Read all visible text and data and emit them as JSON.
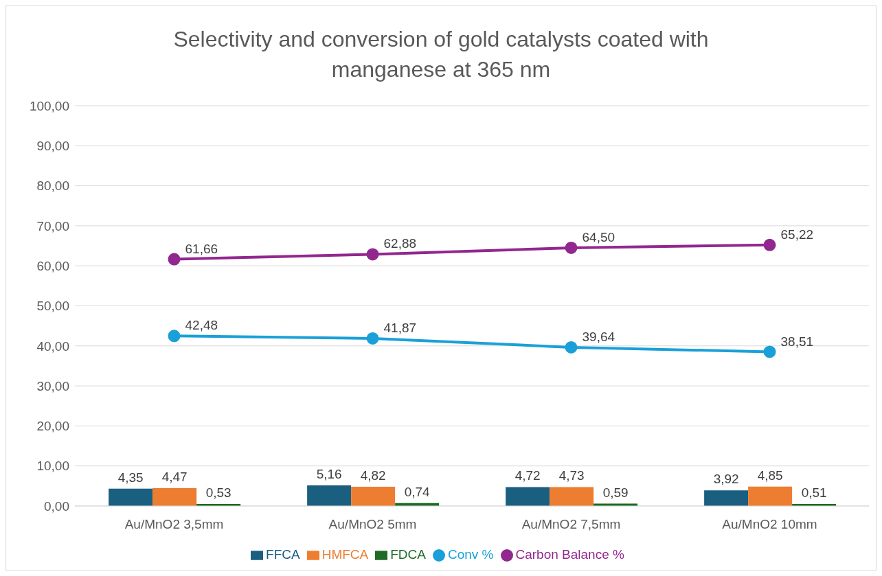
{
  "chart_data": {
    "type": "bar",
    "title": "Selectivity and conversion  of gold catalysts coated with manganese at 365 nm",
    "categories": [
      "Au/MnO2 3,5mm",
      "Au/MnO2 5mm",
      "Au/MnO2 7,5mm",
      "Au/MnO2 10mm"
    ],
    "series": [
      {
        "name": "FFCA",
        "color": "#1a5e80",
        "values": [
          4.35,
          5.16,
          4.72,
          3.92
        ],
        "value_labels": [
          "4,35",
          "5,16",
          "4,72",
          "3,92"
        ]
      },
      {
        "name": "HMFCA",
        "color": "#ed7d31",
        "values": [
          4.47,
          4.82,
          4.73,
          4.85
        ],
        "value_labels": [
          "4,47",
          "4,82",
          "4,73",
          "4,85"
        ]
      },
      {
        "name": "FDCA",
        "color": "#1e6b24",
        "values": [
          0.53,
          0.74,
          0.59,
          0.51
        ],
        "value_labels": [
          "0,53",
          "0,74",
          "0,59",
          "0,51"
        ]
      },
      {
        "name": "Conv %",
        "type": "line",
        "color": "#1aa0d8",
        "values": [
          42.48,
          41.87,
          39.64,
          38.51
        ],
        "value_labels": [
          "42,48",
          "41,87",
          "39,64",
          "38,51"
        ]
      },
      {
        "name": "Carbon Balance %",
        "type": "line",
        "color": "#92278f",
        "values": [
          61.66,
          62.88,
          64.5,
          65.22
        ],
        "value_labels": [
          "61,66",
          "62,88",
          "64,50",
          "65,22"
        ]
      }
    ],
    "ylim": [
      0,
      100
    ],
    "yticks": [
      {
        "value": 0,
        "label": "0,00"
      },
      {
        "value": 10,
        "label": "10,00"
      },
      {
        "value": 20,
        "label": "20,00"
      },
      {
        "value": 30,
        "label": "30,00"
      },
      {
        "value": 40,
        "label": "40,00"
      },
      {
        "value": 50,
        "label": "50,00"
      },
      {
        "value": 60,
        "label": "60,00"
      },
      {
        "value": 70,
        "label": "70,00"
      },
      {
        "value": 80,
        "label": "80,00"
      },
      {
        "value": 90,
        "label": "90,00"
      },
      {
        "value": 100,
        "label": "100,00"
      }
    ],
    "grid": "y",
    "legend": "bottom",
    "marker": "circle",
    "line_style": "solid"
  }
}
